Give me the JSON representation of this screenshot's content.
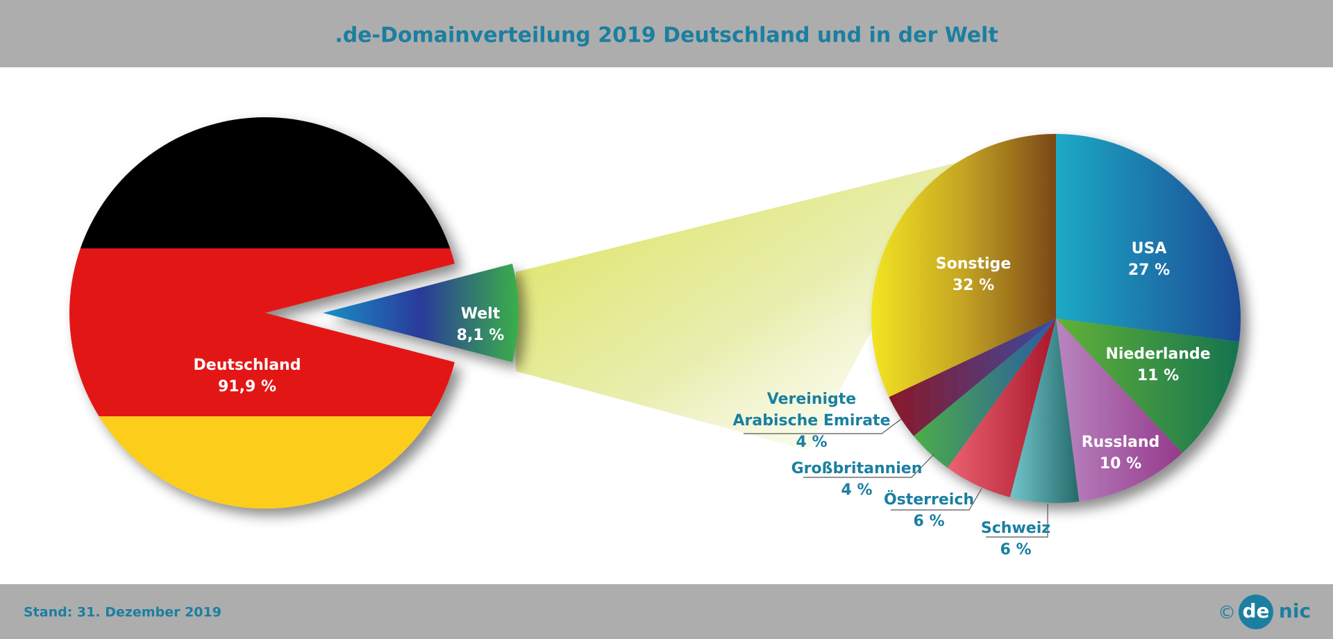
{
  "header": {
    "title": ".de-Domainverteilung 2019 Deutschland und in der Welt"
  },
  "chart_data": [
    {
      "type": "pie",
      "categories": [
        "Deutschland",
        "Welt"
      ],
      "values": [
        91.9,
        8.1
      ],
      "value_labels": [
        "91,9 %",
        "8,1 %"
      ],
      "colors": [
        [
          "#000000",
          "#e31513",
          "#fdcd1c"
        ],
        [
          "#1a90c8",
          "#2a3a9a",
          "#3ab04a"
        ]
      ]
    },
    {
      "type": "pie",
      "categories": [
        "USA",
        "Niederlande",
        "Russland",
        "Schweiz",
        "Österreich",
        "Großbritannien",
        "Vereinigte Arabische Emirate",
        "Sonstige"
      ],
      "values": [
        27,
        11,
        10,
        6,
        6,
        4,
        4,
        32
      ],
      "value_labels": [
        "27 %",
        "11 %",
        "10 %",
        "6 %",
        "6 %",
        "4 %",
        "4 %",
        "32 %"
      ],
      "colors": [
        [
          "#1aaac6",
          "#1a4a94"
        ],
        [
          "#62b236",
          "#157350"
        ],
        [
          "#b985c0",
          "#953a8c"
        ],
        [
          "#72c6cc",
          "#256a6a"
        ],
        [
          "#ec6272",
          "#a8172a"
        ],
        [
          "#4cae48",
          "#2a58a4"
        ],
        [
          "#8a1828",
          "#3a4aa0"
        ],
        [
          "#f2e424",
          "#c4a424",
          "#7a4818"
        ]
      ]
    }
  ],
  "footer": {
    "note": "Stand: 31. Dezember 2019",
    "copyright": "©",
    "logo": [
      "de",
      "nic"
    ]
  }
}
